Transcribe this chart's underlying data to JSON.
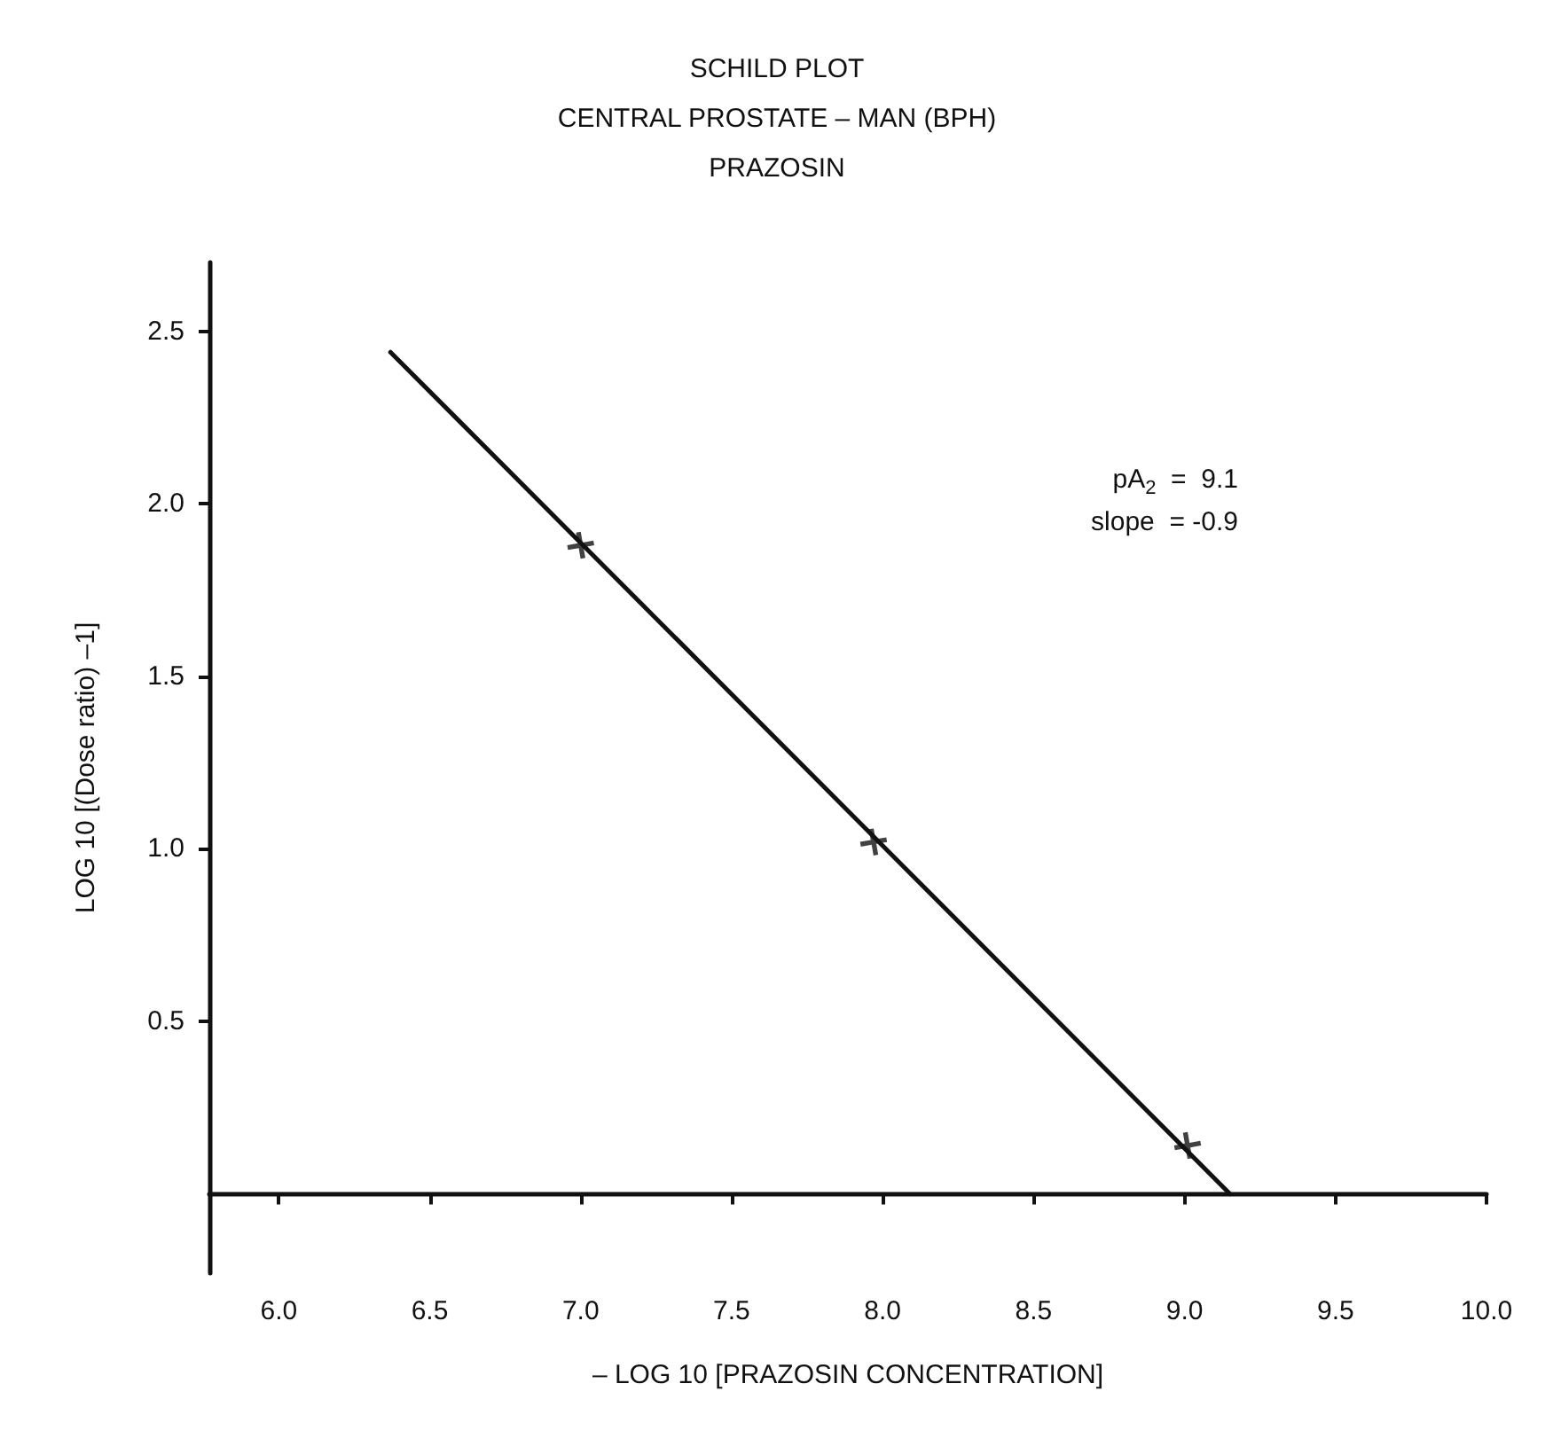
{
  "chart_data": {
    "type": "scatter",
    "title": "SCHILD PLOT",
    "subtitle": "CENTRAL PROSTATE – MAN (BPH)\nPRAZOSIN",
    "xlabel": "– LOG 10 [PRAZOSIN CONCENTRATION]",
    "ylabel": "LOG 10 [(Dose ratio) –1]",
    "annotations": [
      "pA$_{2}$  =  9.1",
      "slope  = -0.9"
    ],
    "series": [
      {
        "type": "scatter",
        "color": "#111111",
        "marker": "cross",
        "x": [
          7.0,
          7.97,
          9.01
        ],
        "values": [
          1.88,
          1.02,
          0.14
        ]
      },
      {
        "type": "line",
        "color": "#111111",
        "marker": "none",
        "line_style": "solid",
        "x": [
          6.37,
          9.15
        ],
        "values": [
          2.44,
          0
        ]
      }
    ],
    "xlim": [
      5.77,
      10.0
    ],
    "ylim": [
      -0.23,
      2.7
    ],
    "xticks": [
      {
        "value": 6,
        "label": "6.0"
      },
      {
        "value": 6.5,
        "label": "6.5"
      },
      {
        "value": 7,
        "label": "7.0"
      },
      {
        "value": 7.5,
        "label": "7.5"
      },
      {
        "value": 8,
        "label": "8.0"
      },
      {
        "value": 8.5,
        "label": "8.5"
      },
      {
        "value": 9,
        "label": "9.0"
      },
      {
        "value": 9.5,
        "label": "9.5"
      },
      {
        "value": 10,
        "label": "10.0"
      }
    ],
    "yticks": [
      0.5,
      {
        "value": 1,
        "label": "1.0"
      },
      1.5,
      {
        "value": 2,
        "label": "2.0"
      },
      2.5
    ]
  }
}
